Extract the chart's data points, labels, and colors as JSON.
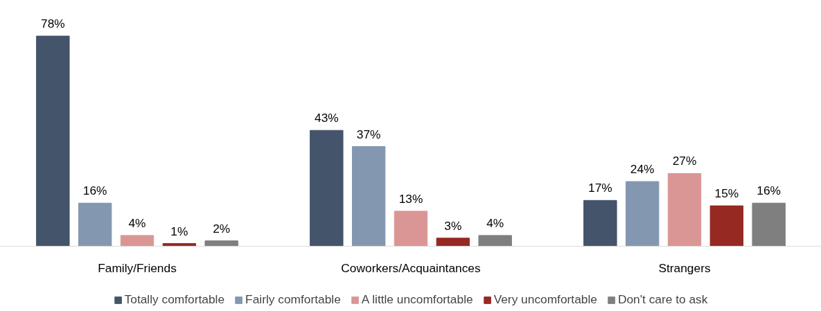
{
  "chart_data": {
    "type": "bar",
    "categories": [
      "Family/Friends",
      "Coworkers/Acquaintances",
      "Strangers"
    ],
    "series": [
      {
        "name": "Totally comfortable",
        "color": "#44546a",
        "values": [
          78,
          43,
          17
        ],
        "value_labels": [
          "78%",
          "43%",
          "17%"
        ]
      },
      {
        "name": "Fairly comfortable",
        "color": "#8497b0",
        "values": [
          16,
          37,
          24
        ],
        "value_labels": [
          "16%",
          "37%",
          "24%"
        ]
      },
      {
        "name": "A little uncomfortable",
        "color": "#da9694",
        "values": [
          4,
          13,
          27
        ],
        "value_labels": [
          "4%",
          "13%",
          "27%"
        ]
      },
      {
        "name": "Very uncomfortable",
        "color": "#962922",
        "values": [
          1,
          3,
          15
        ],
        "value_labels": [
          "1%",
          "3%",
          "15%"
        ]
      },
      {
        "name": "Don't care to ask",
        "color": "#7f7f7f",
        "values": [
          2,
          4,
          16
        ],
        "value_labels": [
          "2%",
          "4%",
          "16%"
        ]
      }
    ],
    "legend": "bottom"
  }
}
